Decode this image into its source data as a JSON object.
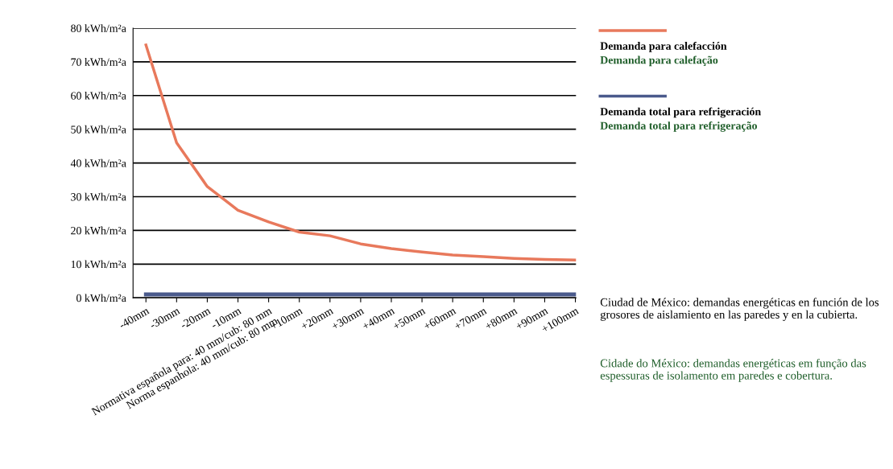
{
  "chart_data": {
    "type": "line",
    "categories": [
      "-40mm",
      "-30mm",
      "-20mm",
      "-10mm",
      "Normativa española para: 40 mm/cub: 80 mm\nNorma espanhola: 40 mm/cub: 80 mm",
      "+10mm",
      "+20mm",
      "+30mm",
      "+40mm",
      "+50mm",
      "+60mm",
      "+70mm",
      "+80mm",
      "+90mm",
      "+100mm"
    ],
    "series": [
      {
        "name": "Demanda para calefacción\nDemanda para calefação",
        "color": "#e8795c",
        "values": [
          75,
          46,
          33,
          26,
          22.5,
          19.5,
          18.4,
          16,
          14.6,
          13.6,
          12.7,
          12.2,
          11.7,
          11.4,
          11.2
        ]
      },
      {
        "name": "Demanda total para refrigeración\nDemanda total para refrigeração",
        "color": "#4a5a8c",
        "values": [
          1,
          1,
          1,
          1,
          1,
          1,
          1,
          1,
          1,
          1,
          1,
          1,
          1,
          1,
          1
        ]
      }
    ],
    "ylim": [
      0,
      80
    ],
    "yticks": [
      {
        "value": 0,
        "label": "0 kWh/m²a"
      },
      {
        "value": 10,
        "label": "10 kWh/m²a"
      },
      {
        "value": 20,
        "label": "20 kWh/m²a"
      },
      {
        "value": 30,
        "label": "30 kWh/m²a"
      },
      {
        "value": 40,
        "label": "40 kWh/m²a"
      },
      {
        "value": 50,
        "label": "50 kWh/m²a"
      },
      {
        "value": 60,
        "label": "60 kWh/m²a"
      },
      {
        "value": 70,
        "label": "70 kWh/m²a"
      },
      {
        "value": 80,
        "label": "80 kWh/m²a"
      }
    ],
    "grid": "y",
    "legend": "top right",
    "marker": "none",
    "line_style": "solid",
    "annotations": [
      "Ciudad de México: demandas energéticas en función de los grosores de aislamiento en las paredes y en la cubierta.",
      "Cidade do México: demandas energéticas em função das espessuras de isolamento em paredes e cobertura."
    ]
  }
}
